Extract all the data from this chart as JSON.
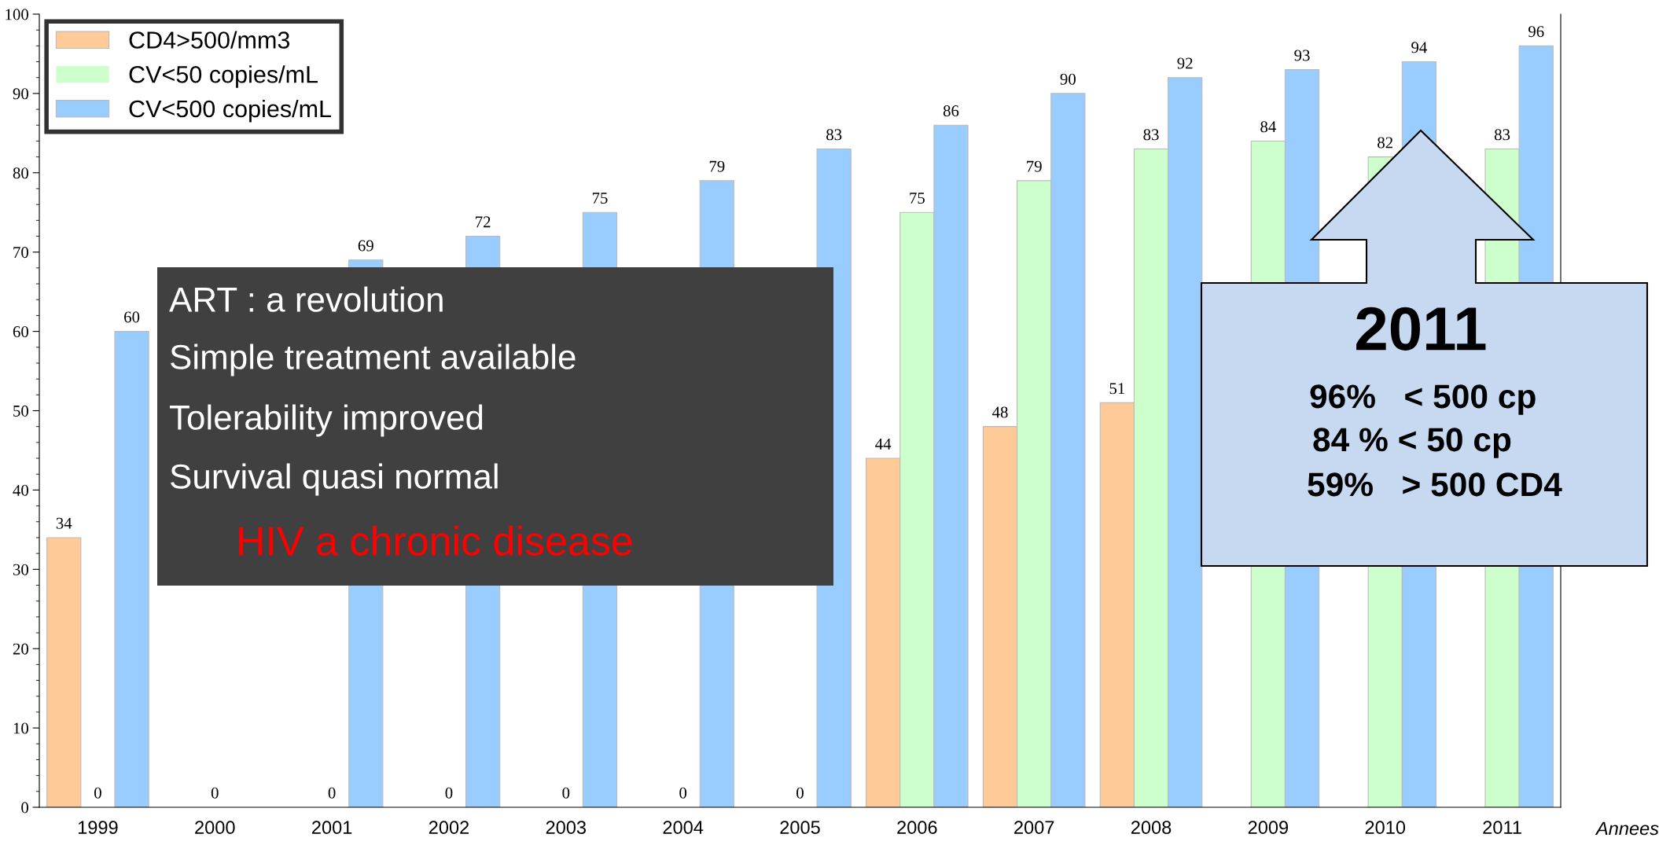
{
  "chart_data": {
    "type": "bar",
    "categories": [
      "1999",
      "2000",
      "2001",
      "2002",
      "2003",
      "2004",
      "2005",
      "2006",
      "2007",
      "2008",
      "2009",
      "2010",
      "2011"
    ],
    "series": [
      {
        "name": "CD4>500/mm3",
        "color": "#fdca98",
        "values": [
          34,
          null,
          null,
          null,
          null,
          null,
          null,
          44,
          48,
          51,
          null,
          null,
          null
        ],
        "value_labels": [
          "34",
          null,
          null,
          null,
          null,
          null,
          null,
          "44",
          "48",
          "51",
          null,
          null,
          null
        ]
      },
      {
        "name": "CV<50 copies/mL",
        "color": "#ccffcc",
        "values": [
          0,
          0,
          0,
          0,
          0,
          0,
          0,
          75,
          79,
          83,
          84,
          82,
          83
        ],
        "value_labels": [
          "0",
          "0",
          "0",
          "0",
          "0",
          "0",
          "0",
          "75",
          "79",
          "83",
          "84",
          "82",
          "83"
        ]
      },
      {
        "name": "CV<500 copies/mL",
        "color": "#99ccff",
        "values": [
          60,
          null,
          69,
          72,
          75,
          79,
          83,
          86,
          90,
          92,
          93,
          94,
          96
        ],
        "value_labels": [
          "60",
          null,
          "69",
          "72",
          "75",
          "79",
          "83",
          "86",
          "90",
          "92",
          "93",
          "94",
          "96"
        ]
      }
    ],
    "xlabel": "Annees",
    "ylim": [
      0,
      100
    ],
    "yticks": [
      0,
      10,
      20,
      30,
      40,
      50,
      60,
      70,
      80,
      90,
      100
    ],
    "legend": "top left",
    "grid": false,
    "annotations": [
      "ART : a revolution",
      "Simple treatment available",
      "Tolerability improved",
      "Survival quasi normal",
      "HIV a chronic disease",
      "2011",
      "96%   < 500 cp",
      "84 % < 50 cp",
      "59%   > 500 CD4"
    ]
  }
}
